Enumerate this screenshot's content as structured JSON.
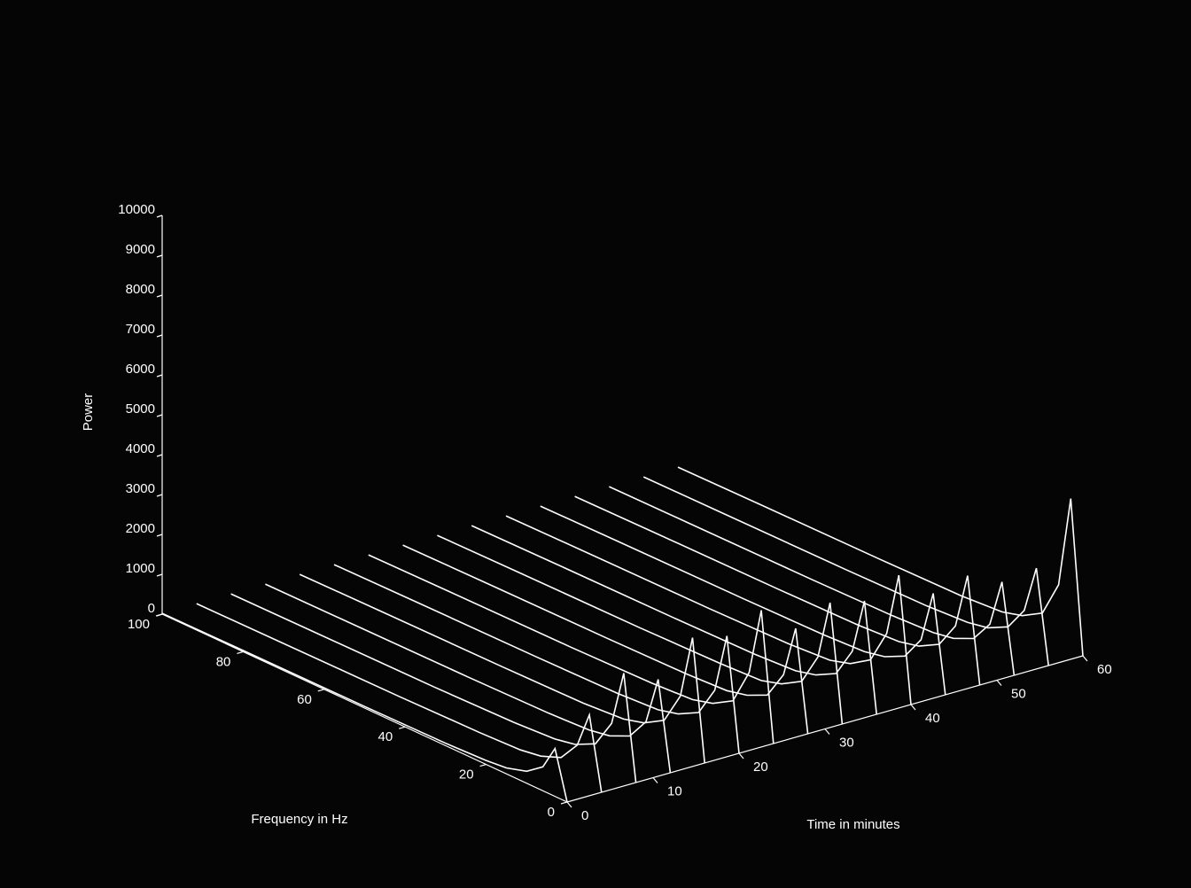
{
  "chart_data": {
    "type": "waterfall3d",
    "xlabel": "Time in minutes",
    "ylabel": "Frequency in Hz",
    "zlabel": "Power",
    "times": [
      0,
      4,
      8,
      12,
      16,
      20,
      24,
      28,
      32,
      36,
      40,
      44,
      48,
      52,
      56,
      60
    ],
    "frequencies": [
      0,
      3,
      6,
      10,
      15,
      20,
      30,
      50,
      80,
      100
    ],
    "values": [
      [
        0,
        1200,
        600,
        300,
        150,
        100,
        60,
        40,
        30,
        20
      ],
      [
        0,
        1800,
        900,
        400,
        200,
        120,
        80,
        50,
        30,
        20
      ],
      [
        0,
        2600,
        1200,
        500,
        250,
        150,
        90,
        50,
        30,
        20
      ],
      [
        0,
        2200,
        1000,
        450,
        220,
        130,
        80,
        50,
        30,
        20
      ],
      [
        0,
        3000,
        1400,
        600,
        300,
        160,
        90,
        60,
        40,
        20
      ],
      [
        0,
        2800,
        1300,
        550,
        280,
        150,
        90,
        60,
        40,
        20
      ],
      [
        0,
        3200,
        1500,
        600,
        300,
        160,
        100,
        60,
        40,
        20
      ],
      [
        0,
        2500,
        1200,
        500,
        260,
        140,
        90,
        60,
        40,
        20
      ],
      [
        0,
        2900,
        1400,
        600,
        300,
        150,
        100,
        60,
        40,
        20
      ],
      [
        0,
        2700,
        1300,
        550,
        280,
        150,
        90,
        60,
        40,
        20
      ],
      [
        0,
        3100,
        1500,
        650,
        320,
        170,
        100,
        60,
        40,
        20
      ],
      [
        0,
        2400,
        1100,
        500,
        250,
        140,
        90,
        60,
        40,
        20
      ],
      [
        0,
        2600,
        1200,
        550,
        270,
        150,
        90,
        60,
        40,
        20
      ],
      [
        0,
        2200,
        1000,
        450,
        220,
        130,
        80,
        50,
        30,
        20
      ],
      [
        0,
        2300,
        1100,
        500,
        240,
        140,
        80,
        50,
        30,
        20
      ],
      [
        0,
        3800,
        1500,
        600,
        300,
        160,
        90,
        60,
        40,
        20
      ]
    ],
    "color": "#ffffff",
    "xlim": [
      0,
      60
    ],
    "xticks": [
      0,
      10,
      20,
      30,
      40,
      50,
      60
    ],
    "ylim": [
      0,
      100
    ],
    "yticks": [
      0,
      20,
      40,
      60,
      80,
      100
    ],
    "zlim": [
      0,
      10000
    ],
    "zticks": [
      0,
      1000,
      2000,
      3000,
      4000,
      5000,
      6000,
      7000,
      8000,
      9000,
      10000
    ]
  }
}
